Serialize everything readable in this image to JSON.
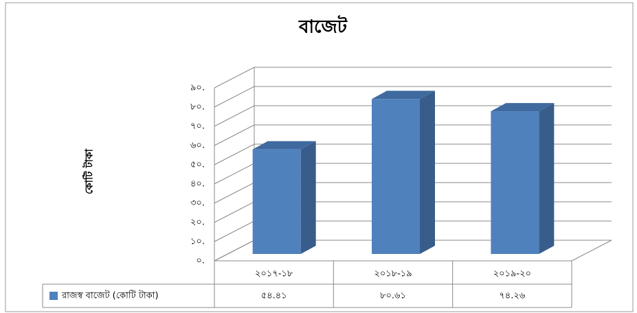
{
  "chart_data": {
    "type": "bar",
    "title": "বাজেট",
    "y_label": "কোটি টাকা",
    "categories": [
      "২০১৭-১৮",
      "২০১৮-১৯",
      "২০১৯-২০"
    ],
    "series": [
      {
        "name": "রাজস্ব বাজেট (কোটি টাকা)",
        "color": "#4f81bd",
        "values": [
          54.41,
          80.61,
          74.26
        ],
        "value_labels": [
          "৫৪.৪১",
          "৮০.৬১",
          "৭৪.২৬"
        ]
      }
    ],
    "ylim": [
      0,
      90
    ],
    "yticks": [
      {
        "value": 0,
        "label": "০."
      },
      {
        "value": 10,
        "label": "১০."
      },
      {
        "value": 20,
        "label": "২০."
      },
      {
        "value": 30,
        "label": "৩০."
      },
      {
        "value": 40,
        "label": "৪০."
      },
      {
        "value": 50,
        "label": "৫০."
      },
      {
        "value": 60,
        "label": "৬০."
      },
      {
        "value": 70,
        "label": "৭০."
      },
      {
        "value": 80,
        "label": "৮০."
      },
      {
        "value": 90,
        "label": "৯০."
      }
    ],
    "grid": true
  }
}
